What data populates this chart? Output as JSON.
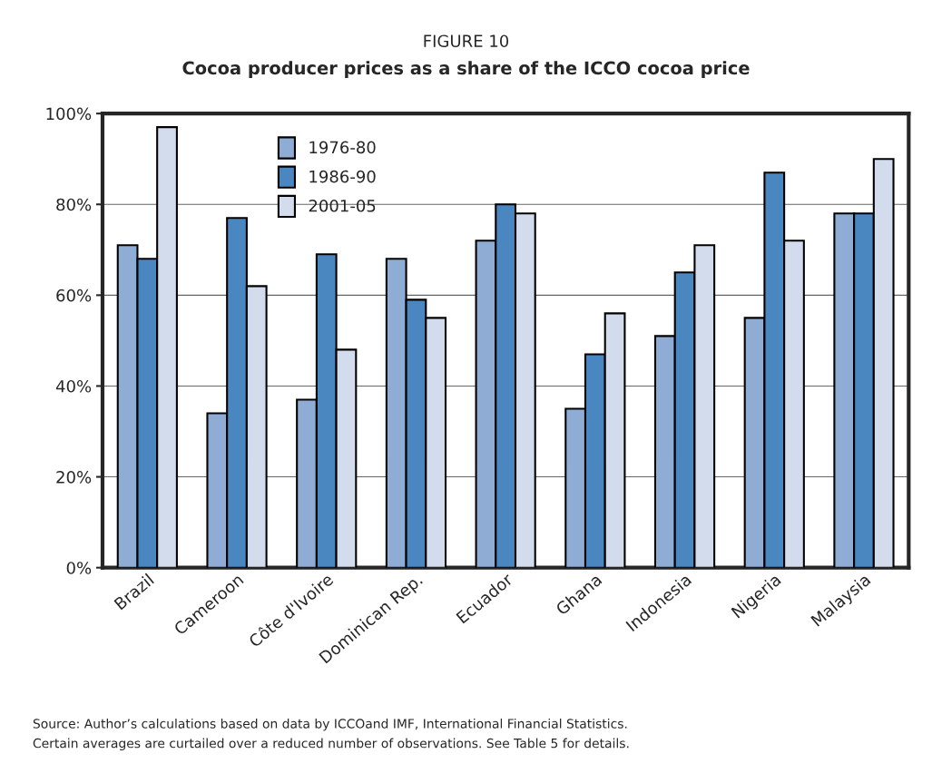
{
  "chart_data": {
    "type": "bar",
    "title": "FIGURE 10",
    "subtitle": "Cocoa producer prices as a share of the ICCO cocoa price",
    "categories": [
      "Brazil",
      "Cameroon",
      "Côte d'Ivoire",
      "Dominican Rep.",
      "Ecuador",
      "Ghana",
      "Indonesia",
      "Nigeria",
      "Malaysia"
    ],
    "series": [
      {
        "name": "1976-80",
        "color": "#8eacd4",
        "values": [
          71,
          34,
          37,
          68,
          72,
          35,
          51,
          55,
          78
        ]
      },
      {
        "name": "1986-90",
        "color": "#4a86c0",
        "values": [
          68,
          77,
          69,
          59,
          80,
          47,
          65,
          87,
          78
        ]
      },
      {
        "name": "2001-05",
        "color": "#d3dced",
        "values": [
          97,
          62,
          48,
          55,
          78,
          56,
          71,
          72,
          90
        ]
      }
    ],
    "ylim": [
      0,
      100
    ],
    "yticks": [
      {
        "value": 0,
        "label": "0%"
      },
      {
        "value": 20,
        "label": "20%"
      },
      {
        "value": 40,
        "label": "40%"
      },
      {
        "value": 60,
        "label": "60%"
      },
      {
        "value": 80,
        "label": "80%"
      },
      {
        "value": 100,
        "label": "100%"
      }
    ],
    "grid": "y",
    "legend": "top left",
    "annotations": [
      "Source: Author’s calculations based on data by ICCOand IMF, International Financial Statistics.",
      "Certain averages are curtailed over a reduced number of observations. See Table 5 for details."
    ]
  }
}
